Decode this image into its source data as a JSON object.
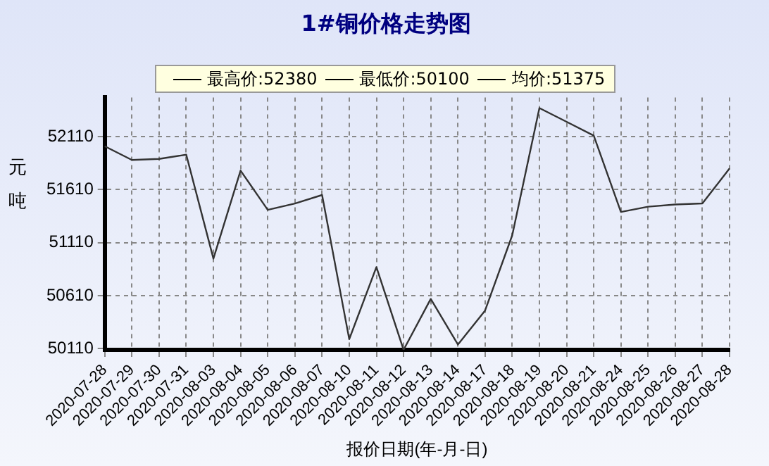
{
  "chart_data": {
    "type": "line",
    "title": "1#铜价格走势图",
    "xlabel": "报价日期(年-月-日)",
    "ylabel": "元吨",
    "annotations": [
      "最高价:52380",
      "最低价:50100",
      "均价:51375"
    ],
    "categories": [
      "2020-07-28",
      "2020-07-29",
      "2020-07-30",
      "2020-07-31",
      "2020-08-03",
      "2020-08-04",
      "2020-08-05",
      "2020-08-06",
      "2020-08-07",
      "2020-08-10",
      "2020-08-11",
      "2020-08-12",
      "2020-08-13",
      "2020-08-14",
      "2020-08-17",
      "2020-08-18",
      "2020-08-19",
      "2020-08-20",
      "2020-08-21",
      "2020-08-24",
      "2020-08-25",
      "2020-08-26",
      "2020-08-27",
      "2020-08-28"
    ],
    "series": [
      {
        "color": "#333333",
        "values": [
          52020,
          51890,
          51900,
          51940,
          50960,
          51790,
          51420,
          51480,
          51560,
          50200,
          50880,
          50100,
          50580,
          50150,
          50470,
          51180,
          52380,
          52250,
          52120,
          51400,
          51450,
          51470,
          51480,
          51810
        ]
      }
    ],
    "ylim": [
      50100,
      52480
    ],
    "yticks": [
      50110,
      50610,
      51110,
      51610,
      52110
    ],
    "grid": true,
    "marker": "none",
    "line_style": "solid"
  }
}
